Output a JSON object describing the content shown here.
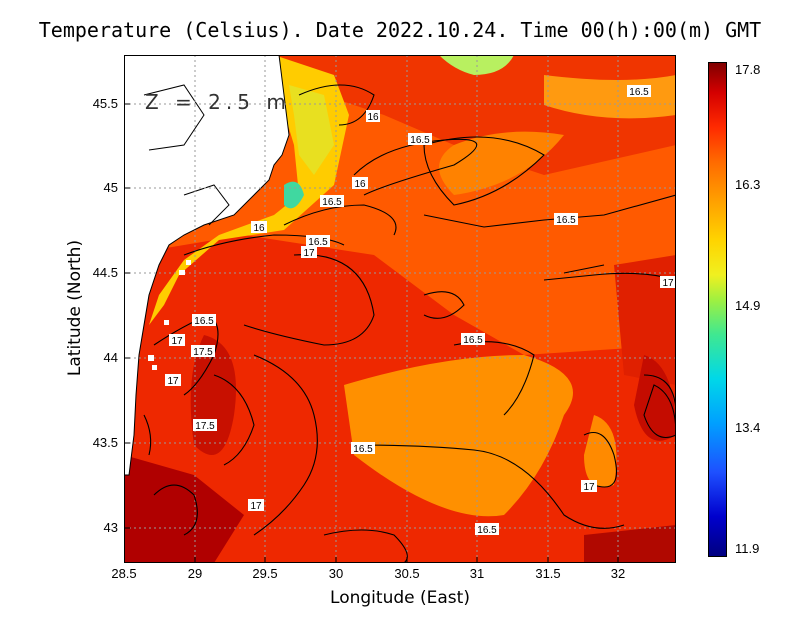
{
  "title": "Temperature (Celsius). Date 2022.10.24. Time 00(h):00(m) GMT",
  "depth_label": "Z = 2.5 m",
  "x_axis": {
    "label": "Longitude (East)",
    "ticks": [
      "28.5",
      "29",
      "29.5",
      "30",
      "30.5",
      "31",
      "31.5",
      "32"
    ]
  },
  "y_axis": {
    "label": "Latitude (North)",
    "ticks": [
      "45.5",
      "45",
      "44.5",
      "44",
      "43.5",
      "43"
    ]
  },
  "colorbar": {
    "max": "17.8",
    "t2": "16.3",
    "t3": "14.9",
    "t4": "13.4",
    "min": "11.9"
  },
  "contour_labels": [
    "16.5",
    "16",
    "16.5",
    "16.5",
    "16",
    "16.5",
    "16",
    "16.5",
    "17",
    "16.5",
    "16.5",
    "17",
    "17",
    "17.5",
    "17",
    "17.5",
    "16.5",
    "16.5",
    "17",
    "17"
  ],
  "colors": {
    "land": "#ffffff",
    "warm": "#e82000",
    "hot": "#a00000",
    "mid": "#ff8c00",
    "cool": "#c8f040"
  }
}
